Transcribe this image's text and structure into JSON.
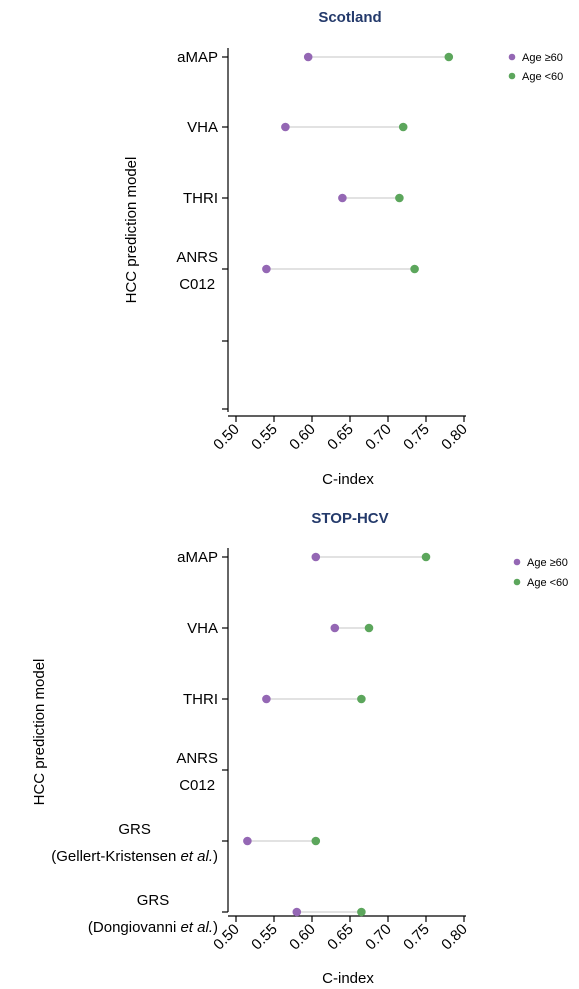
{
  "colors": {
    "age_ge60": "#9467b4",
    "age_lt60": "#5ca65c",
    "title": "#243a6b",
    "connector": "#d9d9d9"
  },
  "chart_data": [
    {
      "type": "dumbbell",
      "title": "Scotland",
      "xlabel": "C-index",
      "ylabel": "HCC prediction model",
      "xlim": [
        0.5,
        0.8
      ],
      "x_ticks": [
        "0.50",
        "0.55",
        "0.60",
        "0.65",
        "0.70",
        "0.75",
        "0.80"
      ],
      "legend": [
        "Age ≥60",
        "Age <60"
      ],
      "categories": [
        {
          "lines": [
            "aMAP"
          ],
          "ge60": 0.595,
          "lt60": 0.78
        },
        {
          "lines": [
            "VHA"
          ],
          "ge60": 0.565,
          "lt60": 0.72
        },
        {
          "lines": [
            "THRI"
          ],
          "ge60": 0.64,
          "lt60": 0.715
        },
        {
          "lines": [
            "ANRS",
            "C012"
          ],
          "ge60": 0.54,
          "lt60": 0.735
        },
        {
          "lines": [],
          "ge60": null,
          "lt60": null
        },
        {
          "lines": [],
          "ge60": null,
          "lt60": null
        }
      ]
    },
    {
      "type": "dumbbell",
      "title": "STOP-HCV",
      "xlabel": "C-index",
      "ylabel": "HCC prediction model",
      "xlim": [
        0.5,
        0.8
      ],
      "x_ticks": [
        "0.50",
        "0.55",
        "0.60",
        "0.65",
        "0.70",
        "0.75",
        "0.80"
      ],
      "legend": [
        "Age ≥60",
        "Age <60"
      ],
      "categories": [
        {
          "lines": [
            "aMAP"
          ],
          "ge60": 0.605,
          "lt60": 0.75
        },
        {
          "lines": [
            "VHA"
          ],
          "ge60": 0.63,
          "lt60": 0.675
        },
        {
          "lines": [
            "THRI"
          ],
          "ge60": 0.54,
          "lt60": 0.665
        },
        {
          "lines": [
            "ANRS",
            "C012"
          ],
          "ge60": null,
          "lt60": null
        },
        {
          "lines": [
            "GRS",
            "(Gellert-Kristensen et al.)"
          ],
          "ge60": 0.515,
          "lt60": 0.605
        },
        {
          "lines": [
            "GRS",
            "(Dongiovanni et al.)"
          ],
          "ge60": 0.58,
          "lt60": 0.665
        }
      ]
    }
  ]
}
